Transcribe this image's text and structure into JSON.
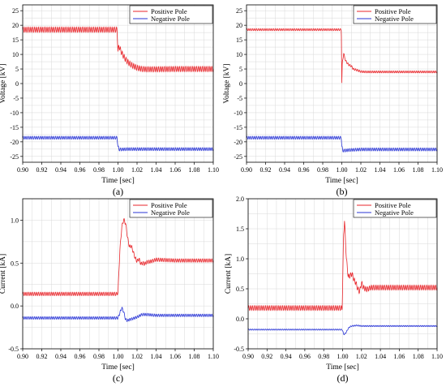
{
  "chart_data": [
    {
      "id": "a",
      "type": "line",
      "panel_label": "(a)",
      "xlabel": "Time [sec]",
      "ylabel": "Voltage [kV]",
      "xlim": [
        0.9,
        1.1
      ],
      "ylim": [
        -27,
        27
      ],
      "xticks": [
        "0.90",
        "0.92",
        "0.94",
        "0.96",
        "0.98",
        "1.00",
        "1.02",
        "1.04",
        "1.06",
        "1.08",
        "1.10"
      ],
      "yticks": [
        "-25",
        "-20",
        "-15",
        "-10",
        "-5",
        "0",
        "5",
        "10",
        "15",
        "20",
        "25"
      ],
      "grid": true,
      "legend": "top-right",
      "series": [
        {
          "name": "Positive Pole",
          "color": "#e8262b",
          "x": [
            0.9,
            0.95,
            0.999,
            1.0,
            1.001,
            1.002,
            1.004,
            1.006,
            1.008,
            1.01,
            1.012,
            1.015,
            1.02,
            1.025,
            1.03,
            1.04,
            1.06,
            1.08,
            1.1
          ],
          "y": [
            18.5,
            18.5,
            18.5,
            11.0,
            13.0,
            12.0,
            10.5,
            9.3,
            8.3,
            7.5,
            6.9,
            6.2,
            5.4,
            5.0,
            4.9,
            4.9,
            5.0,
            5.0,
            5.0
          ],
          "ripple": 0.9
        },
        {
          "name": "Negative Pole",
          "color": "#2a36d6",
          "x": [
            0.9,
            0.95,
            0.999,
            1.0,
            1.001,
            1.003,
            1.01,
            1.04,
            1.1
          ],
          "y": [
            -18.6,
            -18.6,
            -18.6,
            -21.5,
            -22.6,
            -22.6,
            -22.5,
            -22.5,
            -22.5
          ],
          "ripple": 0.5
        }
      ]
    },
    {
      "id": "b",
      "type": "line",
      "panel_label": "(b)",
      "xlabel": "Time [sec]",
      "ylabel": "Voltage [kV]",
      "xlim": [
        0.9,
        1.1
      ],
      "ylim": [
        -27,
        27
      ],
      "xticks": [
        "0.90",
        "0.92",
        "0.94",
        "0.96",
        "0.98",
        "1.00",
        "1.02",
        "1.04",
        "1.06",
        "1.08",
        "1.10"
      ],
      "yticks": [
        "-25",
        "-20",
        "-15",
        "-10",
        "-5",
        "0",
        "5",
        "10",
        "15",
        "20",
        "25"
      ],
      "grid": true,
      "legend": "top-right",
      "series": [
        {
          "name": "Positive Pole",
          "color": "#e8262b",
          "x": [
            0.9,
            0.95,
            0.9995,
            1.0,
            1.0005,
            1.002,
            1.004,
            1.007,
            1.01,
            1.012,
            1.016,
            1.02,
            1.025,
            1.03,
            1.06,
            1.1
          ],
          "y": [
            18.5,
            18.5,
            18.5,
            0.2,
            7.0,
            10.3,
            7.8,
            6.5,
            6.0,
            5.0,
            4.6,
            4.1,
            4.0,
            4.0,
            4.0,
            4.0
          ],
          "ripple": 0.35
        },
        {
          "name": "Negative Pole",
          "color": "#2a36d6",
          "x": [
            0.9,
            0.95,
            0.9995,
            1.0,
            1.001,
            1.003,
            1.008,
            1.02,
            1.1
          ],
          "y": [
            -18.6,
            -18.6,
            -18.6,
            -21.5,
            -23.0,
            -23.0,
            -22.8,
            -22.6,
            -22.6
          ],
          "ripple": 0.5
        }
      ]
    },
    {
      "id": "c",
      "type": "line",
      "panel_label": "(c)",
      "xlabel": "Time [sec]",
      "ylabel": "Current [kA]",
      "xlim": [
        0.9,
        1.1
      ],
      "ylim": [
        -0.5,
        1.25
      ],
      "xticks": [
        "0.90",
        "0.92",
        "0.94",
        "0.96",
        "0.98",
        "1.00",
        "1.02",
        "1.04",
        "1.06",
        "1.08",
        "1.10"
      ],
      "yticks": [
        "-0.5",
        "0.0",
        "0.5",
        "1.0"
      ],
      "grid": true,
      "legend": "top-right",
      "series": [
        {
          "name": "Positive Pole",
          "color": "#e8262b",
          "x": [
            0.9,
            0.95,
            0.999,
            1.0,
            1.002,
            1.004,
            1.006,
            1.008,
            1.01,
            1.012,
            1.014,
            1.016,
            1.018,
            1.02,
            1.022,
            1.024,
            1.026,
            1.028,
            1.03,
            1.035,
            1.04,
            1.06,
            1.08,
            1.1
          ],
          "y": [
            0.14,
            0.14,
            0.14,
            0.16,
            0.65,
            0.92,
            1.01,
            0.96,
            0.8,
            0.69,
            0.7,
            0.63,
            0.56,
            0.52,
            0.55,
            0.49,
            0.5,
            0.49,
            0.51,
            0.52,
            0.54,
            0.53,
            0.53,
            0.53
          ],
          "ripple": 0.02
        },
        {
          "name": "Negative Pole",
          "color": "#2a36d6",
          "x": [
            0.9,
            0.95,
            1.0,
            1.002,
            1.004,
            1.006,
            1.008,
            1.01,
            1.012,
            1.015,
            1.02,
            1.025,
            1.03,
            1.04,
            1.06,
            1.1
          ],
          "y": [
            -0.14,
            -0.14,
            -0.14,
            -0.08,
            -0.02,
            -0.07,
            -0.16,
            -0.17,
            -0.16,
            -0.15,
            -0.13,
            -0.1,
            -0.1,
            -0.11,
            -0.11,
            -0.11
          ],
          "ripple": 0.015
        }
      ]
    },
    {
      "id": "d",
      "type": "line",
      "panel_label": "(d)",
      "xlabel": "Time [sec]",
      "ylabel": "Current [kA]",
      "xlim": [
        0.9,
        1.1
      ],
      "ylim": [
        -0.5,
        2.0
      ],
      "xticks": [
        "0.90",
        "0.92",
        "0.94",
        "0.96",
        "0.98",
        "1.00",
        "1.02",
        "1.04",
        "1.06",
        "1.08",
        "1.10"
      ],
      "yticks": [
        "-0.5",
        "0.0",
        "0.5",
        "1.0",
        "1.5",
        "2.0"
      ],
      "grid": true,
      "legend": "top-right",
      "series": [
        {
          "name": "Positive Pole",
          "color": "#e8262b",
          "x": [
            0.9,
            0.95,
            0.9995,
            1.0,
            1.001,
            1.002,
            1.004,
            1.006,
            1.008,
            1.01,
            1.012,
            1.014,
            1.016,
            1.018,
            1.02,
            1.022,
            1.024,
            1.026,
            1.03,
            1.04,
            1.06,
            1.1
          ],
          "y": [
            0.18,
            0.18,
            0.18,
            0.5,
            1.4,
            1.63,
            1.0,
            0.7,
            0.72,
            0.75,
            0.65,
            0.6,
            0.5,
            0.45,
            0.6,
            0.52,
            0.5,
            0.49,
            0.52,
            0.52,
            0.52,
            0.52
          ],
          "ripple": 0.04
        },
        {
          "name": "Negative Pole",
          "color": "#2a36d6",
          "x": [
            0.9,
            0.95,
            0.9995,
            1.0,
            1.001,
            1.002,
            1.004,
            1.006,
            1.008,
            1.01,
            1.015,
            1.02,
            1.03,
            1.06,
            1.1
          ],
          "y": [
            -0.18,
            -0.18,
            -0.18,
            -0.2,
            -0.25,
            -0.26,
            -0.22,
            -0.16,
            -0.13,
            -0.12,
            -0.11,
            -0.12,
            -0.12,
            -0.12,
            -0.12
          ],
          "ripple": 0.01
        }
      ]
    }
  ]
}
